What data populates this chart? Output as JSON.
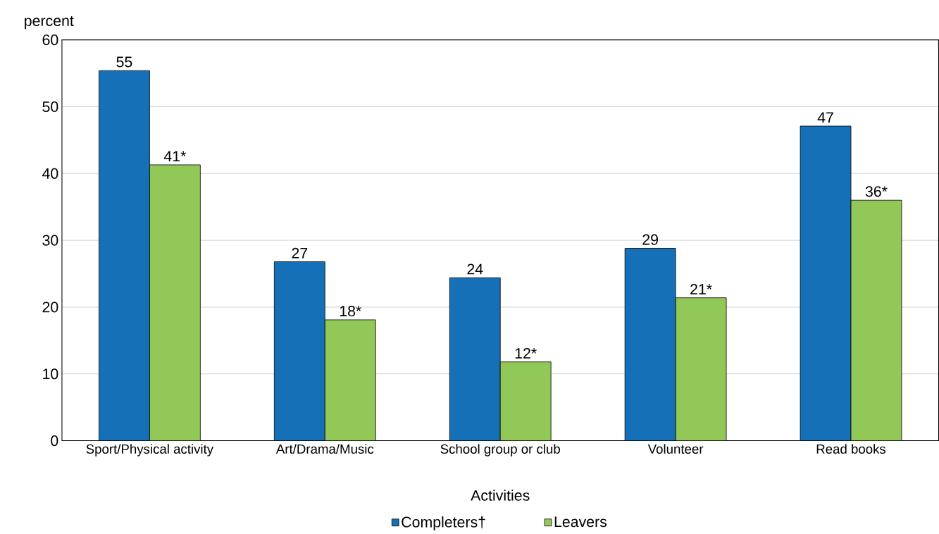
{
  "chart_data": {
    "type": "bar",
    "xlabel": "Activities",
    "ylabel": "percent",
    "categories": [
      "Sport/Physical activity",
      "Art/Drama/Music",
      "School group or club",
      "Volunteer",
      "Read books"
    ],
    "series": [
      {
        "name": "Completers†",
        "color": "#1570b8",
        "values": [
          55.4,
          26.8,
          24.4,
          28.8,
          47.1
        ],
        "value_labels": [
          "55",
          "27",
          "24",
          "29",
          "47"
        ]
      },
      {
        "name": "Leavers",
        "color": "#92c857",
        "values": [
          41.3,
          18.1,
          11.8,
          21.4,
          36.0
        ],
        "value_labels": [
          "41*",
          "18*",
          "12*",
          "21*",
          "36*"
        ]
      }
    ],
    "ylim": [
      0,
      60
    ],
    "yticks": [
      0,
      10,
      20,
      30,
      40,
      50,
      60
    ],
    "grid": "y",
    "legend": "bottom"
  }
}
